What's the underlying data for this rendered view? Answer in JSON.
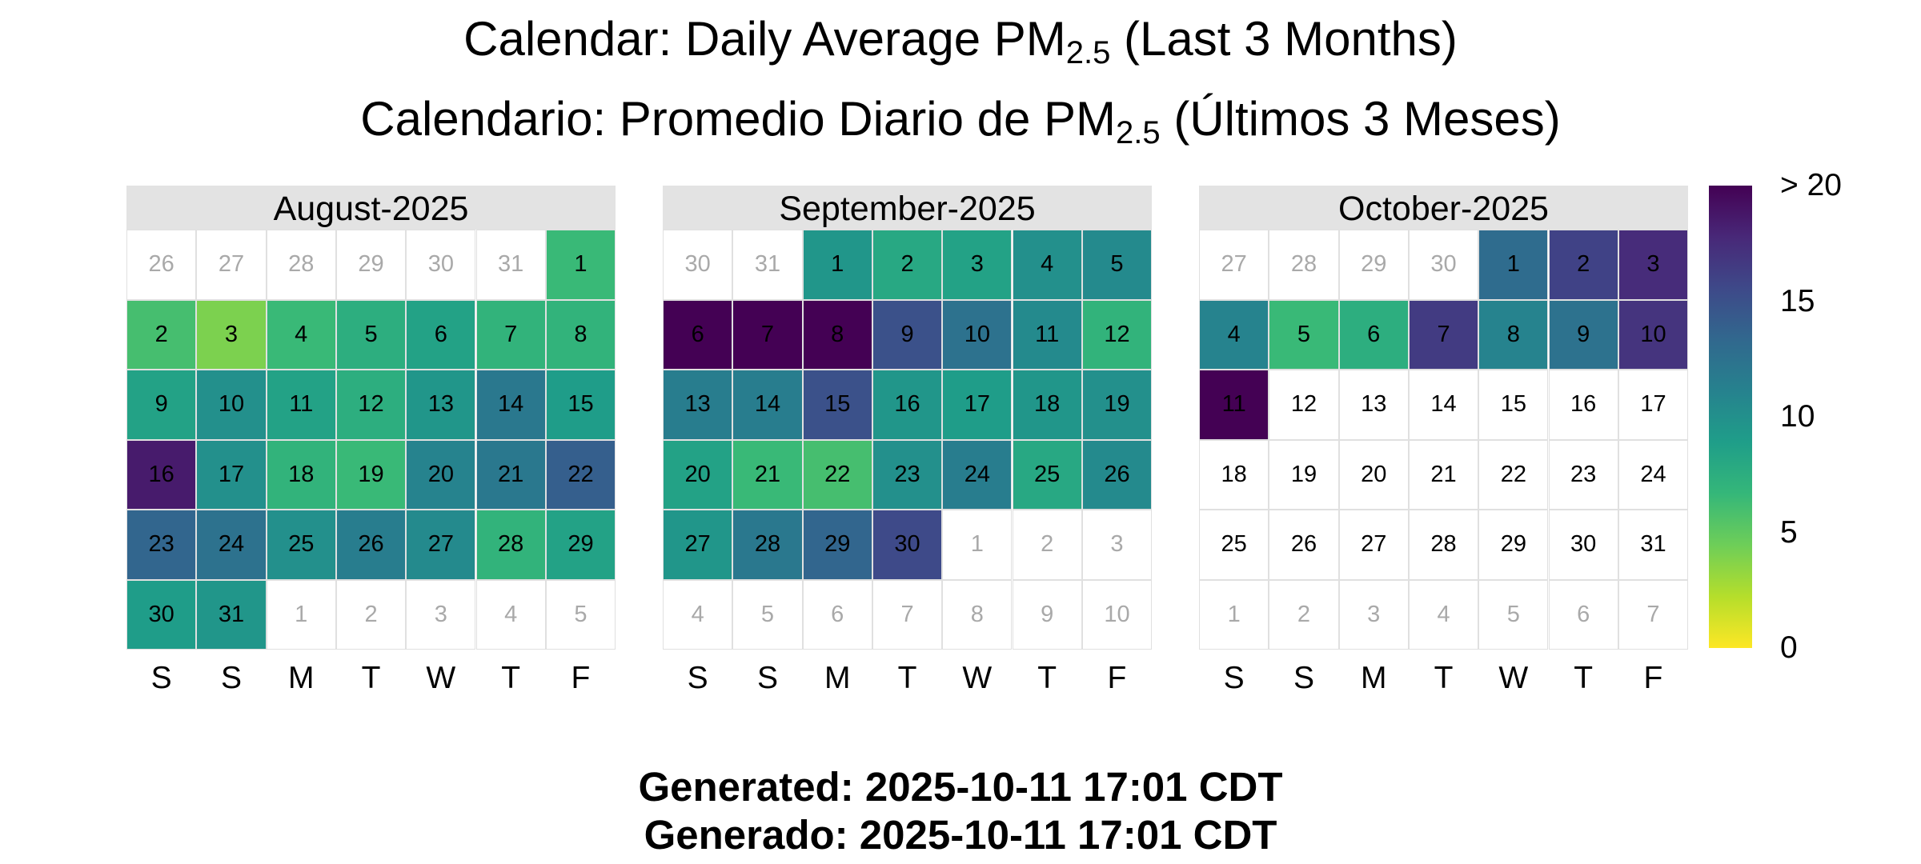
{
  "title_en": {
    "prefix": "Calendar: Daily Average PM",
    "sub": "2.5",
    "suffix": " (Last 3 Months)"
  },
  "title_es": {
    "prefix": "Calendario: Promedio Diario de PM",
    "sub": "2.5",
    "suffix": " (Últimos 3 Meses)"
  },
  "footer": {
    "line1": "Generated: 2025-10-11 17:01 CDT",
    "line2": "Generado: 2025-10-11 17:01 CDT"
  },
  "colors": {
    "cell_border": "#e0e0e0",
    "header_bg": "#e3e3e3",
    "outside_text": "#a9a9a9"
  },
  "chart_data": {
    "type": "heatmap",
    "weekday_labels": [
      "S",
      "S",
      "M",
      "T",
      "W",
      "T",
      "F"
    ],
    "colorscale": {
      "name": "viridis",
      "range": [
        0,
        20
      ],
      "ticks": [
        "0",
        "5",
        "10",
        "15",
        "> 20"
      ],
      "tick_values": [
        0,
        5,
        10,
        15,
        20
      ]
    },
    "months": [
      {
        "label": "August-2025",
        "leading_days": [
          26,
          27,
          28,
          29,
          30,
          31
        ],
        "values": [
          6.5,
          6.0,
          4.0,
          6.5,
          7.5,
          8.5,
          7.0,
          7.0,
          8.5,
          10.0,
          8.5,
          7.5,
          9.5,
          12.0,
          9.0,
          18.5,
          10.0,
          7.0,
          6.5,
          11.0,
          12.0,
          14.0,
          13.5,
          12.5,
          10.0,
          11.5,
          10.5,
          7.0,
          8.5,
          9.0,
          9.5
        ],
        "trailing_days": [
          1,
          2,
          3,
          4,
          5
        ]
      },
      {
        "label": "September-2025",
        "leading_days": [
          30,
          31
        ],
        "values": [
          9.5,
          8.0,
          8.5,
          10.0,
          10.5,
          20.0,
          20.0,
          20.0,
          15.0,
          12.5,
          10.5,
          7.0,
          11.5,
          11.5,
          15.0,
          9.5,
          9.0,
          9.5,
          10.0,
          8.5,
          6.5,
          6.0,
          10.0,
          11.5,
          8.0,
          10.5,
          9.5,
          12.0,
          13.5,
          15.5
        ],
        "trailing_days": [
          1,
          2,
          3,
          4,
          5,
          6,
          7,
          8,
          9,
          10
        ]
      },
      {
        "label": "October-2025",
        "leading_days": [
          27,
          28,
          29,
          30
        ],
        "values": [
          13.0,
          16.0,
          17.5,
          11.0,
          6.5,
          7.5,
          16.5,
          11.0,
          12.5,
          17.0,
          20.0
        ],
        "empty_days": [
          12,
          13,
          14,
          15,
          16,
          17,
          18,
          19,
          20,
          21,
          22,
          23,
          24,
          25,
          26,
          27,
          28,
          29,
          30,
          31
        ],
        "trailing_days": [
          1,
          2,
          3,
          4,
          5,
          6,
          7
        ]
      }
    ]
  }
}
